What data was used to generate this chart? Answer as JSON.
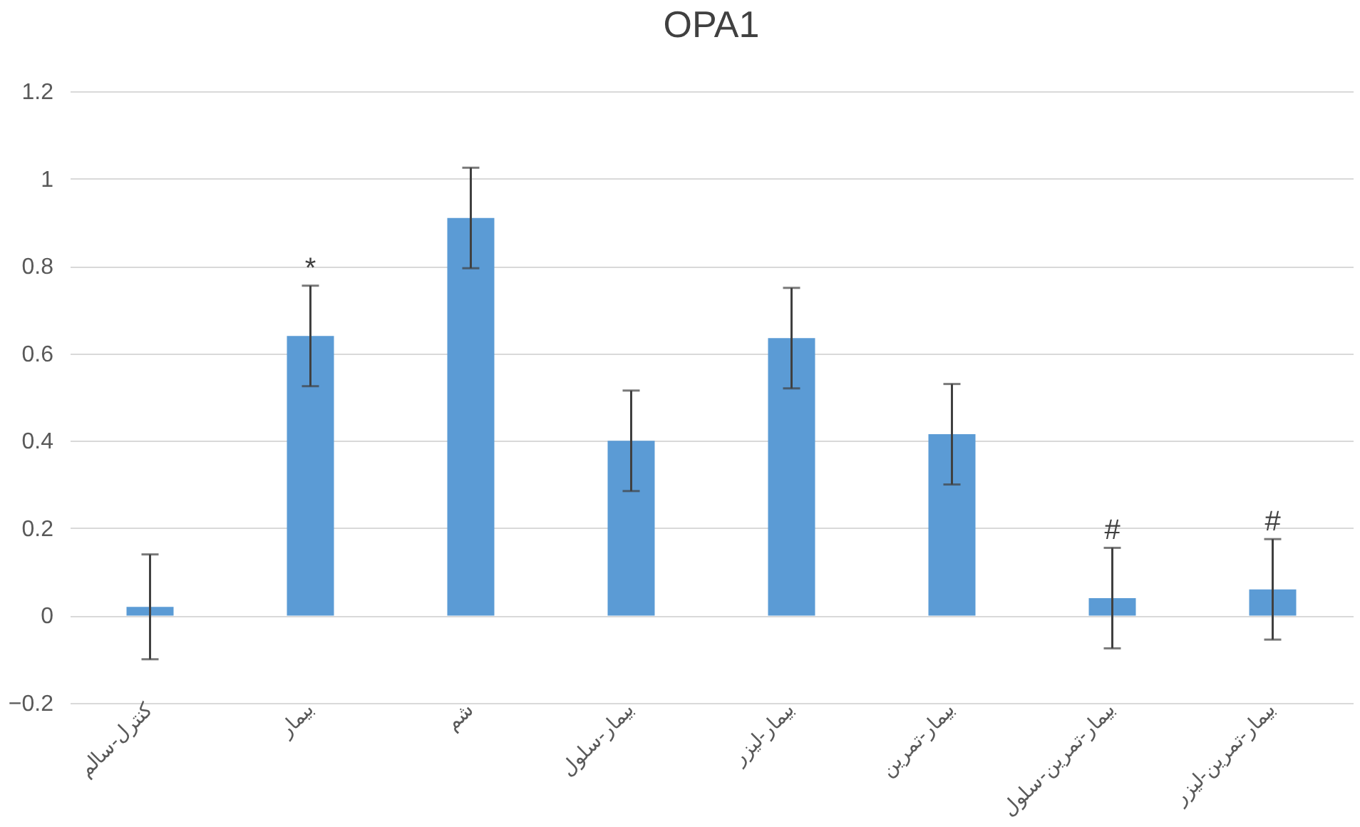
{
  "chart_data": {
    "type": "bar",
    "title": "OPA1",
    "categories": [
      "کنترل-سالم",
      "بیمار",
      "شم",
      "بیمار-سلول",
      "بیمار-لیزر",
      "بیمار-تمرین",
      "بیمار-تمرین-سلول",
      "بیمار-تمرین-لیزر"
    ],
    "values": [
      0.02,
      0.64,
      0.91,
      0.4,
      0.635,
      0.415,
      0.04,
      0.06
    ],
    "errors": [
      0.12,
      0.115,
      0.115,
      0.115,
      0.115,
      0.115,
      0.115,
      0.115
    ],
    "color": "#5b9bd5",
    "ylim": [
      -0.2,
      1.2
    ],
    "yticks": [
      -0.2,
      0,
      0.2,
      0.4,
      0.6,
      0.8,
      1,
      1.2
    ],
    "grid": "y",
    "annotations": [
      {
        "text": "*",
        "x": "بیمار",
        "y": 0.755
      },
      {
        "text": "#",
        "x": "بیمار-تمرین-سلول",
        "y": 0.155
      },
      {
        "text": "#",
        "x": "بیمار-تمرین-لیزر",
        "y": 0.175
      }
    ]
  }
}
